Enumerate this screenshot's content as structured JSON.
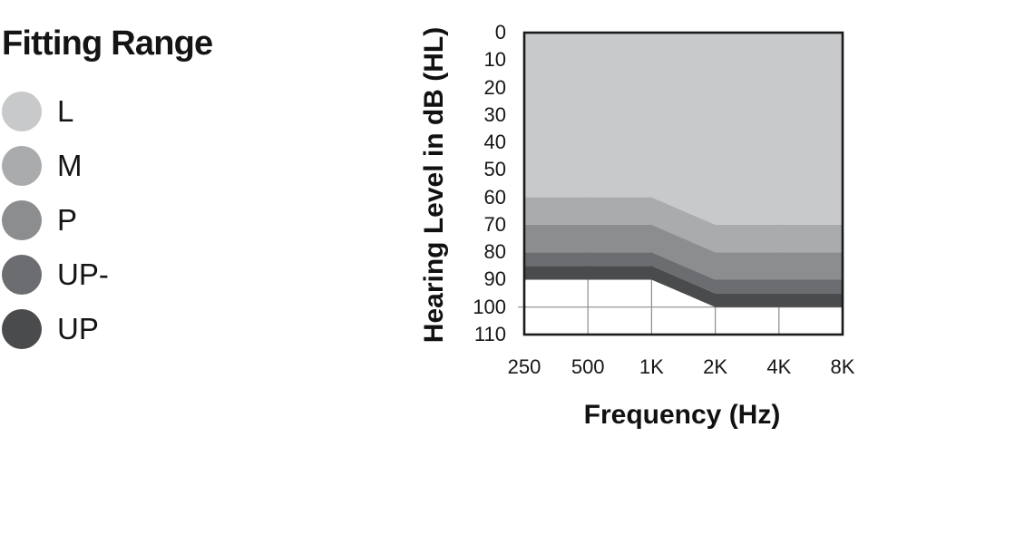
{
  "page": {
    "background": "#ffffff"
  },
  "legend": {
    "title": "Fitting Range",
    "items": [
      {
        "label": "L",
        "color": "#c8c9cb"
      },
      {
        "label": "M",
        "color": "#a9abad"
      },
      {
        "label": "P",
        "color": "#8b8d8f"
      },
      {
        "label": "UP-",
        "color": "#6b6d70"
      },
      {
        "label": "UP",
        "color": "#4a4b4d"
      }
    ]
  },
  "chart_data": {
    "type": "area",
    "title": "Fitting Range",
    "xlabel": "Frequency (Hz)",
    "ylabel": "Hearing Level in dB (HL)",
    "x_categories": [
      "250",
      "500",
      "1K",
      "2K",
      "4K",
      "8K"
    ],
    "y_ticks": [
      0,
      10,
      20,
      30,
      40,
      50,
      60,
      70,
      80,
      90,
      100,
      110
    ],
    "ylim": [
      0,
      110
    ],
    "y_axis_inverted": true,
    "grid": {
      "vertical_lines_at": [
        "500",
        "1K",
        "2K",
        "4K"
      ],
      "horizontal_lines_at_db": [
        100
      ],
      "color": "#8c8c8c"
    },
    "frame_color": "#1b1b1b",
    "layers": [
      {
        "name": "L",
        "color": "#c8c9cb",
        "bottom_db": [
          60,
          60,
          60,
          70,
          70,
          70
        ]
      },
      {
        "name": "M",
        "color": "#a9abad",
        "bottom_db": [
          70,
          70,
          70,
          80,
          80,
          80
        ]
      },
      {
        "name": "P",
        "color": "#8b8d8f",
        "bottom_db": [
          80,
          80,
          80,
          90,
          90,
          90
        ]
      },
      {
        "name": "UP-",
        "color": "#6b6d70",
        "bottom_db": [
          85,
          85,
          85,
          95,
          95,
          95
        ]
      },
      {
        "name": "UP",
        "color": "#4a4b4d",
        "bottom_db": [
          90,
          90,
          90,
          100,
          100,
          100
        ]
      }
    ]
  }
}
